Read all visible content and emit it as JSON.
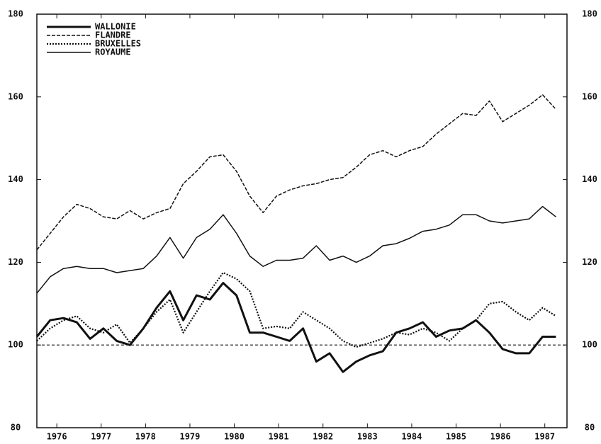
{
  "chart_data": {
    "type": "line",
    "x": [
      1976.05,
      1976.35,
      1976.65,
      1976.95,
      1977.25,
      1977.55,
      1977.85,
      1978.15,
      1978.45,
      1978.75,
      1979.05,
      1979.35,
      1979.65,
      1979.95,
      1980.25,
      1980.55,
      1980.85,
      1981.15,
      1981.45,
      1981.75,
      1982.05,
      1982.35,
      1982.65,
      1982.95,
      1983.25,
      1983.55,
      1983.85,
      1984.15,
      1984.45,
      1984.75,
      1985.05,
      1985.35,
      1985.65,
      1985.95,
      1986.25,
      1986.55,
      1986.85,
      1987.15,
      1987.45,
      1987.75
    ],
    "series": [
      {
        "name": "WALLONIE",
        "color": "#111111",
        "style": "thick",
        "values": [
          102,
          106,
          106.5,
          105.5,
          101.5,
          104,
          101,
          100,
          104,
          109,
          113,
          106,
          112,
          111,
          115,
          112,
          103,
          103,
          102,
          101,
          104,
          96,
          98,
          93.5,
          96,
          97.5,
          98.5,
          103,
          104,
          105.5,
          102,
          103.5,
          104,
          106,
          103,
          99,
          98,
          98,
          102,
          102
        ]
      },
      {
        "name": "FLANDRE",
        "color": "#111111",
        "style": "dashed",
        "values": [
          123,
          127,
          131,
          134,
          133,
          131,
          130.5,
          132.5,
          130.5,
          132,
          133,
          139,
          142,
          145.5,
          146,
          142,
          136,
          132,
          136,
          137.5,
          138.5,
          139,
          140,
          140.5,
          143,
          146,
          147,
          145.5,
          147,
          148,
          151,
          153.5,
          156,
          155.5,
          159,
          154,
          156,
          158,
          160.5,
          157
        ]
      },
      {
        "name": "BRUXELLES",
        "color": "#111111",
        "style": "dotted",
        "values": [
          101,
          104,
          106,
          107,
          104,
          103,
          105,
          100.5,
          104,
          108,
          111,
          103,
          108,
          113,
          117.5,
          116,
          113,
          104,
          104.5,
          104,
          108,
          106,
          104,
          101,
          99.5,
          100.5,
          101.5,
          103,
          102.5,
          104,
          103,
          101,
          104,
          106,
          110,
          110.5,
          108,
          106,
          109,
          107
        ]
      },
      {
        "name": "ROYAUME",
        "color": "#111111",
        "style": "thin",
        "values": [
          112.5,
          116.5,
          118.5,
          119,
          118.5,
          118.5,
          117.5,
          118,
          118.5,
          121.5,
          126,
          121,
          126,
          128,
          131.5,
          127,
          121.5,
          119,
          120.5,
          120.5,
          121,
          124,
          120.5,
          121.5,
          120,
          121.5,
          124,
          124.5,
          125.8,
          127.5,
          128,
          129,
          131.5,
          131.5,
          130,
          129.5,
          130,
          130.5,
          133.5,
          131
        ]
      }
    ],
    "reference_line": 100,
    "xlim": [
      1976.05,
      1988.0
    ],
    "xticks": [
      {
        "value": 1976.5,
        "label": "1976"
      },
      {
        "value": 1977.5,
        "label": "1977"
      },
      {
        "value": 1978.5,
        "label": "1978"
      },
      {
        "value": 1979.5,
        "label": "1979"
      },
      {
        "value": 1980.5,
        "label": "1980"
      },
      {
        "value": 1981.5,
        "label": "1981"
      },
      {
        "value": 1982.5,
        "label": "1982"
      },
      {
        "value": 1983.5,
        "label": "1983"
      },
      {
        "value": 1984.5,
        "label": "1984"
      },
      {
        "value": 1985.5,
        "label": "1985"
      },
      {
        "value": 1986.5,
        "label": "1986"
      },
      {
        "value": 1987.5,
        "label": "1987"
      }
    ],
    "ylim": [
      80,
      180
    ],
    "yticks": [
      80,
      100,
      120,
      140,
      160,
      180
    ],
    "y2lim": [
      80,
      180
    ],
    "y2ticks": [
      80,
      100,
      120,
      140,
      160,
      180
    ],
    "legend": "upper left"
  }
}
